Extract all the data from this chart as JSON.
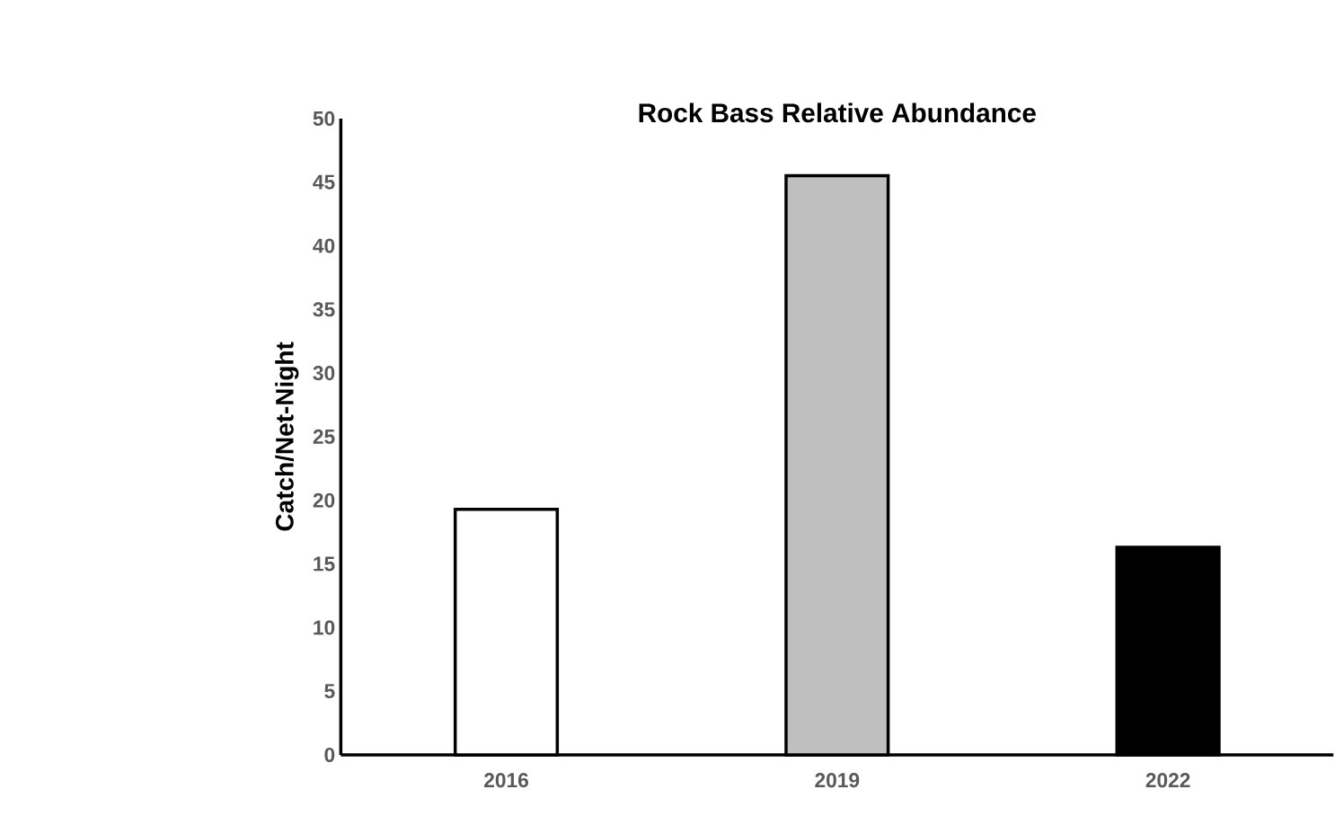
{
  "chart_data": {
    "type": "bar",
    "title": "Rock Bass Relative Abundance",
    "ylabel": "Catch/Net-Night",
    "categories": [
      "2016",
      "2019",
      "2022"
    ],
    "values": [
      19.3,
      45.5,
      16.3
    ],
    "colors": [
      "#ffffff",
      "#bfbfbf",
      "#000000"
    ],
    "ylim": [
      0,
      50
    ],
    "yticks": [
      0,
      5,
      10,
      15,
      20,
      25,
      30,
      35,
      40,
      45,
      50
    ],
    "grid": false
  }
}
